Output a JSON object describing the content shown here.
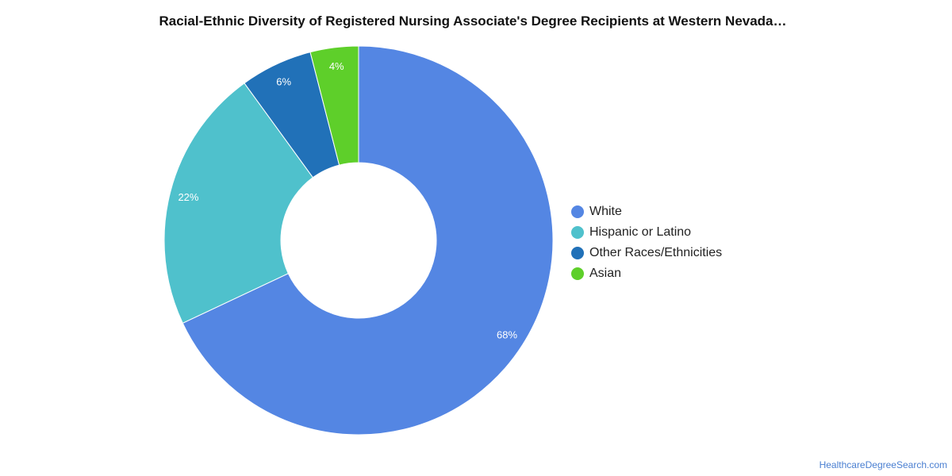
{
  "chart_data": {
    "type": "pie",
    "donut": true,
    "title": "Racial-Ethnic Diversity of Registered Nursing Associate's Degree Recipients at Western Nevada…",
    "categories": [
      "White",
      "Hispanic or Latino",
      "Other Races/Ethnicities",
      "Asian"
    ],
    "values": [
      68,
      22,
      6,
      4
    ],
    "value_labels": [
      "68%",
      "22%",
      "6%",
      "4%"
    ],
    "colors": [
      "#5486e3",
      "#4fc1cc",
      "#2171b8",
      "#5ecf2a"
    ],
    "legend_position": "right"
  },
  "source": "HealthcareDegreeSearch.com"
}
